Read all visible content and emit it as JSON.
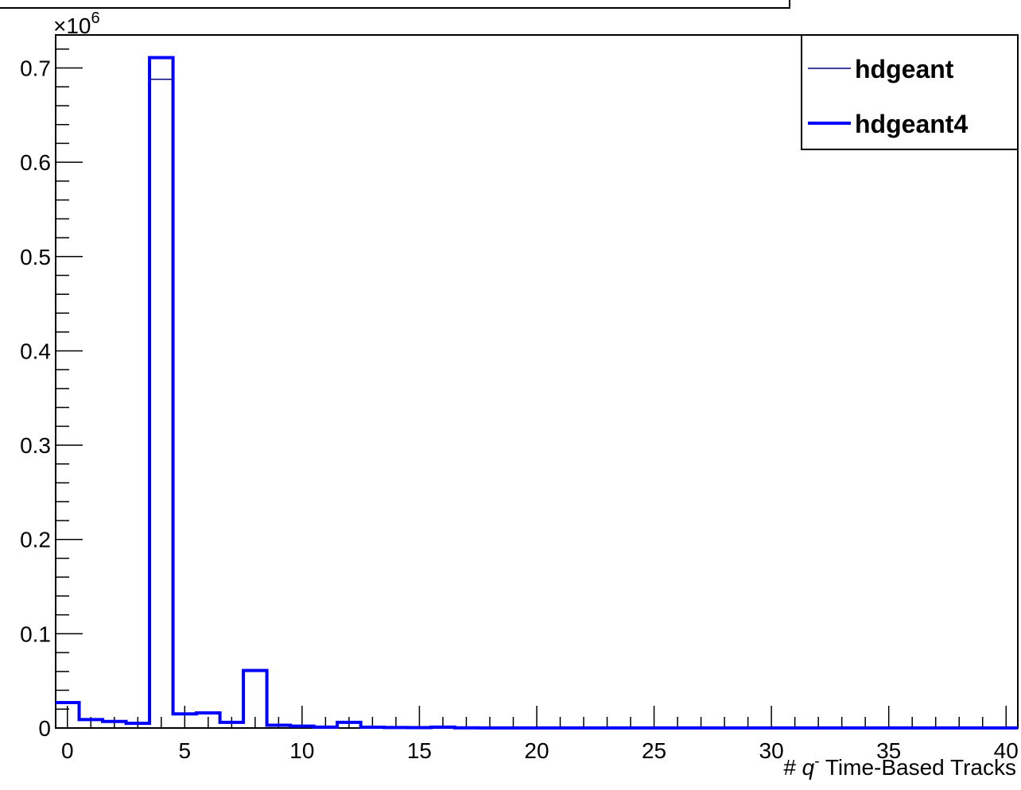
{
  "colors": {
    "hdgeant": "#000080",
    "hdgeant4": "#0000ff",
    "axis": "#000000"
  },
  "chart_data": {
    "type": "bar",
    "title": "",
    "xlabel_prefix": "#",
    "xlabel_symbol": "q",
    "xlabel_superscript": "-",
    "xlabel_suffix": "Time-Based Tracks",
    "ylabel": "",
    "exponent_prefix": "×10",
    "exponent_power": "6",
    "xlim": [
      -0.5,
      40.5
    ],
    "ylim": [
      0,
      0.735
    ],
    "bin_width": 1,
    "x_ticks": [
      0,
      5,
      10,
      15,
      20,
      25,
      30,
      35,
      40
    ],
    "x_tick_labels": [
      "0",
      "5",
      "10",
      "15",
      "20",
      "25",
      "30",
      "35",
      "40"
    ],
    "y_ticks": [
      0,
      0.1,
      0.2,
      0.3,
      0.4,
      0.5,
      0.6,
      0.7
    ],
    "y_tick_labels": [
      "0",
      "0.1",
      "0.2",
      "0.3",
      "0.4",
      "0.5",
      "0.6",
      "0.7"
    ],
    "categories": [
      0,
      1,
      2,
      3,
      4,
      5,
      6,
      7,
      8,
      9,
      10,
      11,
      12,
      13,
      14,
      15,
      16,
      17,
      18,
      19,
      20,
      21,
      22,
      23,
      24,
      25,
      26,
      27,
      28,
      29,
      30,
      31,
      32,
      33,
      34,
      35,
      36,
      37,
      38,
      39,
      40
    ],
    "legend_position": "top-right",
    "series": [
      {
        "name": "hdgeant",
        "values": [
          0.027,
          0.009,
          0.007,
          0.005,
          0.688,
          0.015,
          0.016,
          0.006,
          0.061,
          0.003,
          0.002,
          0.001,
          0.006,
          0.0008,
          0.0005,
          0.0004,
          0.0009,
          0.0002,
          0.0001,
          0.0001,
          0.0001,
          0.0001,
          0.0001,
          0.0001,
          0.0001,
          0.0001,
          0.0001,
          0.0001,
          0.0001,
          0.0001,
          0.0001,
          0.0001,
          0.0001,
          0.0001,
          0.0001,
          0.0001,
          0.0001,
          0.0001,
          0.0001,
          0.0001,
          0.0001
        ]
      },
      {
        "name": "hdgeant4",
        "values": [
          0.027,
          0.009,
          0.007,
          0.005,
          0.711,
          0.015,
          0.016,
          0.006,
          0.061,
          0.003,
          0.002,
          0.001,
          0.006,
          0.0008,
          0.0005,
          0.0004,
          0.0009,
          0.0002,
          0.0001,
          0.0001,
          0.0001,
          0.0001,
          0.0001,
          0.0001,
          0.0001,
          0.0001,
          0.0001,
          0.0001,
          0.0001,
          0.0001,
          0.0001,
          0.0001,
          0.0001,
          0.0001,
          0.0001,
          0.0001,
          0.0001,
          0.0001,
          0.0001,
          0.0001,
          0.0001
        ]
      }
    ]
  }
}
